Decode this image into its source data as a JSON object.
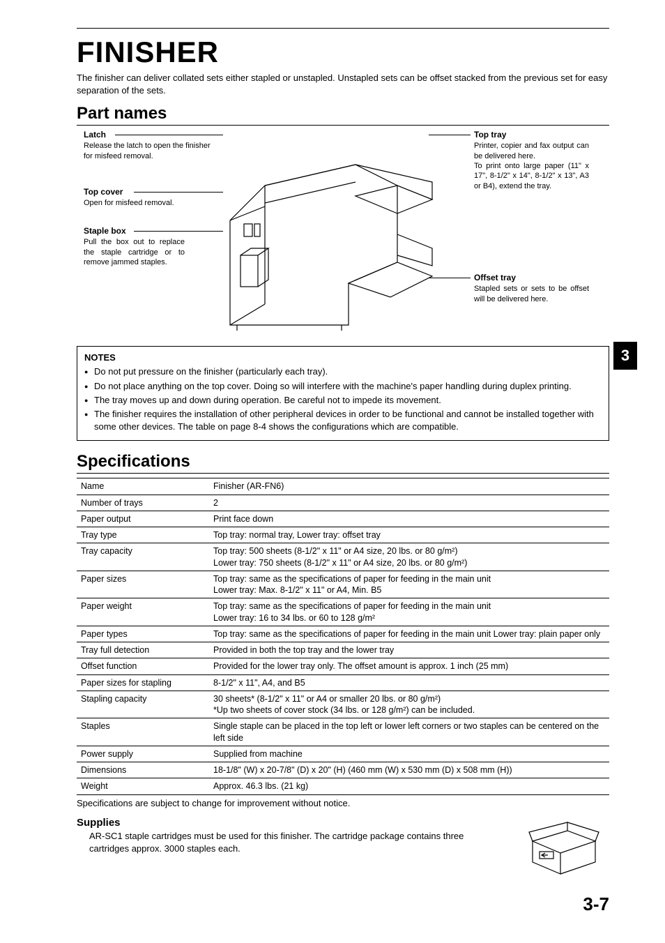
{
  "title": "FINISHER",
  "intro": "The finisher can deliver collated sets either stapled or unstapled. Unstapled sets can be offset stacked from the previous set for easy separation of the sets.",
  "section_part_names": "Part names",
  "labels": {
    "latch": {
      "title": "Latch",
      "text": "Release the latch to open the finisher for misfeed removal."
    },
    "top_cover": {
      "title": "Top cover",
      "text": "Open for misfeed removal."
    },
    "staple_box": {
      "title": "Staple box",
      "text": "Pull the box out to replace the staple cartridge or to remove jammed staples."
    },
    "top_tray": {
      "title": "Top tray",
      "text": "Printer, copier and fax output can be delivered here.\nTo print onto large paper (11\" x 17\", 8-1/2\" x 14\", 8-1/2\" x 13\", A3 or B4), extend the tray."
    },
    "offset_tray": {
      "title": "Offset tray",
      "text": "Stapled sets or sets to be offset will be delivered here."
    }
  },
  "notes_title": "NOTES",
  "notes": [
    "Do not put pressure on the finisher (particularly each tray).",
    "Do not place anything on the top cover. Doing so will interfere with the machine's paper handling during duplex printing.",
    "The tray moves up and down during operation. Be careful not to impede its movement.",
    "The finisher requires the installation of other peripheral devices in order to be functional and cannot be installed together with some other devices. The table on page 8-4 shows the configurations which are compatible."
  ],
  "chapter_number": "3",
  "section_specifications": "Specifications",
  "spec_rows": [
    [
      "Name",
      "Finisher (AR-FN6)"
    ],
    [
      "Number of trays",
      "2"
    ],
    [
      "Paper output",
      "Print face down"
    ],
    [
      "Tray type",
      "Top tray: normal tray, Lower tray: offset tray"
    ],
    [
      "Tray capacity",
      "Top tray: 500 sheets (8-1/2\" x 11\" or A4 size, 20 lbs. or 80 g/m²)\nLower tray: 750 sheets (8-1/2\" x 11\" or A4 size, 20 lbs. or 80 g/m²)"
    ],
    [
      "Paper sizes",
      "Top tray: same as the specifications of paper for feeding in the main unit\nLower tray: Max. 8-1/2\" x 11\" or A4, Min. B5"
    ],
    [
      "Paper weight",
      "Top tray: same as the specifications of paper for feeding in the main unit\nLower tray: 16 to 34 lbs. or 60 to 128 g/m²"
    ],
    [
      "Paper types",
      "Top tray: same as the specifications of paper for feeding in the main unit Lower tray: plain paper only"
    ],
    [
      "Tray full detection",
      "Provided in both the top tray and the lower tray"
    ],
    [
      "Offset function",
      "Provided for the lower tray only. The offset amount is approx. 1 inch (25 mm)"
    ],
    [
      "Paper sizes for stapling",
      "8-1/2\" x 11\", A4, and B5"
    ],
    [
      "Stapling capacity",
      "30 sheets* (8-1/2\" x 11\" or A4 or smaller 20 lbs. or 80 g/m²)\n*Up two sheets of cover stock (34 lbs. or 128 g/m²) can be included."
    ],
    [
      "Staples",
      "Single staple can be placed in the top left or lower left corners or two staples can be centered on the left side"
    ],
    [
      "Power supply",
      "Supplied from machine"
    ],
    [
      "Dimensions",
      "18-1/8\" (W) x 20-7/8\" (D) x 20\" (H) (460 mm (W) x 530 mm (D) x 508 mm (H))"
    ],
    [
      "Weight",
      "Approx. 46.3 lbs. (21 kg)"
    ]
  ],
  "spec_note": "Specifications are subject to change for improvement without notice.",
  "supplies_title": "Supplies",
  "supplies_text": "AR-SC1 staple cartridges must be used for this finisher. The cartridge package contains three cartridges approx. 3000 staples each.",
  "page_number": "3-7",
  "colors": {
    "text": "#000000",
    "bg": "#ffffff",
    "tab_bg": "#000000",
    "tab_fg": "#ffffff"
  }
}
